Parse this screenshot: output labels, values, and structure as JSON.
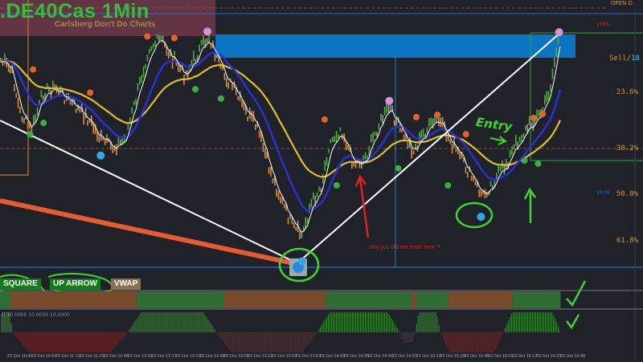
{
  "header": {
    "symbol_title": ".DE40Cas 1Min",
    "subtitle": "Carlsberg Don't Do Charts"
  },
  "right_labels": {
    "open": "OPEN D",
    "y38": "y38%",
    "sell": "Sell/",
    "sell_count": "18",
    "plow": "pLow"
  },
  "buttons": {
    "square": "SQUARE",
    "up_arrow": "UP ARROW",
    "vwap": "VWAP"
  },
  "annotations": {
    "entry": "Entry",
    "question": "why you did not enter here ?"
  },
  "oscillator_label": "() 10.0000 10.0000 10.0000",
  "colors": {
    "bull": "#4caf3a",
    "bear": "#e08a2a",
    "neutral": "#9a9a9a",
    "fast_ma": "#ffffff",
    "mid_ma": "#2a2fd0",
    "slow_ma": "#e0c020",
    "annotation_green": "#3fd52a",
    "annotation_red": "#e02020"
  },
  "chart_data": {
    "type": "candlestick",
    "title": ".DE40Cas 1Min",
    "y_axis": {
      "kind": "fibonacci retracement",
      "ticks": [
        "23.6%",
        "38.2%",
        "50.0%",
        "61.8%"
      ],
      "tick_values": [
        23.6,
        38.2,
        50.0,
        61.8
      ],
      "inverted": true
    },
    "x_axis": {
      "ticks": [
        "23 Oct 10:41",
        "23 Oct 10:57",
        "23 Oct 11:13",
        "23 Oct 11:29",
        "23 Oct 11:45",
        "23 Oct 12:01",
        "23 Oct 12:17",
        "23 Oct 12:33",
        "23 Oct 12:48",
        "23 Oct 13:05",
        "23 Oct 13:21",
        "23 Oct 13:37",
        "23 Oct 13:53",
        "23 Oct 14:09",
        "23 Oct 14:25",
        "23 Oct 14:41",
        "23 Oct 14:57",
        "23 Oct 15:13",
        "23 Oct 15:29",
        "23 Oct 15:45",
        "23 Oct 16:01",
        "23 Oct 16:17",
        "23 Oct 16:33",
        "23 Oct 16:49"
      ]
    },
    "price_path": [
      [
        "10:36",
        15.1
      ],
      [
        "10:44",
        18.2
      ],
      [
        "10:49",
        28.6
      ],
      [
        "10:57",
        33.7
      ],
      [
        "11:05",
        23.4
      ],
      [
        "11:13",
        22.4
      ],
      [
        "11:24",
        26.5
      ],
      [
        "11:35",
        30.6
      ],
      [
        "11:43",
        35.8
      ],
      [
        "11:51",
        37.9
      ],
      [
        "11:59",
        35.8
      ],
      [
        "12:07",
        24.4
      ],
      [
        "12:15",
        12.0
      ],
      [
        "12:23",
        9.9
      ],
      [
        "12:31",
        15.1
      ],
      [
        "12:39",
        19.3
      ],
      [
        "12:47",
        14.1
      ],
      [
        "12:55",
        8.9
      ],
      [
        "13:03",
        18.2
      ],
      [
        "13:11",
        22.4
      ],
      [
        "13:19",
        28.6
      ],
      [
        "13:27",
        32.7
      ],
      [
        "13:35",
        43.1
      ],
      [
        "13:43",
        51.3
      ],
      [
        "13:51",
        58.6
      ],
      [
        "13:57",
        60.7
      ],
      [
        "14:02",
        53.4
      ],
      [
        "14:10",
        47.2
      ],
      [
        "14:15",
        36.9
      ],
      [
        "14:23",
        32.7
      ],
      [
        "14:31",
        42.0
      ],
      [
        "14:39",
        41.0
      ],
      [
        "14:47",
        32.7
      ],
      [
        "14:55",
        27.5
      ],
      [
        "15:03",
        33.7
      ],
      [
        "15:11",
        38.9
      ],
      [
        "15:19",
        33.7
      ],
      [
        "15:27",
        30.6
      ],
      [
        "15:35",
        35.8
      ],
      [
        "15:43",
        41.0
      ],
      [
        "15:52",
        47.2
      ],
      [
        "15:57",
        50.3
      ],
      [
        "16:05",
        46.2
      ],
      [
        "16:13",
        42.0
      ],
      [
        "16:21",
        35.8
      ],
      [
        "16:29",
        31.7
      ],
      [
        "16:37",
        28.6
      ],
      [
        "16:42",
        22.4
      ],
      [
        "16:48",
        8.9
      ]
    ],
    "markers": [
      {
        "kind": "high",
        "time": "10:58",
        "value": 17.5
      },
      {
        "kind": "low",
        "time": "10:56",
        "value": 34.2
      },
      {
        "kind": "low",
        "time": "11:05",
        "value": 31.3
      },
      {
        "kind": "high",
        "time": "11:36",
        "value": 23.5
      },
      {
        "kind": "swing-low",
        "time": "11:43",
        "value": 39.7
      },
      {
        "kind": "high",
        "time": "12:14",
        "value": 9.0
      },
      {
        "kind": "high",
        "time": "12:32",
        "value": 9.4
      },
      {
        "kind": "low",
        "time": "12:46",
        "value": 22.6
      },
      {
        "kind": "swing-high",
        "time": "12:54",
        "value": 7.7
      },
      {
        "kind": "low",
        "time": "13:03",
        "value": 25.0
      },
      {
        "kind": "swing-low",
        "time": "13:57",
        "value": 67.0
      },
      {
        "kind": "high",
        "time": "14:12",
        "value": 30.4
      },
      {
        "kind": "low",
        "time": "14:20",
        "value": 47.4
      },
      {
        "kind": "swing-high",
        "time": "14:55",
        "value": 25.6
      },
      {
        "kind": "low",
        "time": "15:01",
        "value": 43.0
      },
      {
        "kind": "high",
        "time": "15:13",
        "value": 29.8
      },
      {
        "kind": "high",
        "time": "15:27",
        "value": 29.2
      },
      {
        "kind": "low",
        "time": "15:34",
        "value": 47.4
      },
      {
        "kind": "high",
        "time": "15:46",
        "value": 34.2
      },
      {
        "kind": "swing-low",
        "time": "15:56",
        "value": 55.5
      },
      {
        "kind": "low",
        "time": "16:25",
        "value": 41.0
      },
      {
        "kind": "high",
        "time": "16:31",
        "value": 30.0
      },
      {
        "kind": "low",
        "time": "16:34",
        "value": 41.8
      },
      {
        "kind": "high",
        "time": "16:37",
        "value": 29.0
      },
      {
        "kind": "swing-high",
        "time": "16:48",
        "value": 7.9
      }
    ],
    "trend_panel": [
      [
        "10:36",
        "10:43",
        "bull"
      ],
      [
        "10:43",
        "12:07",
        "bear"
      ],
      [
        "12:07",
        "13:05",
        "bull"
      ],
      [
        "13:05",
        "14:13",
        "bear"
      ],
      [
        "14:13",
        "15:10",
        "bull"
      ],
      [
        "15:10",
        "15:13",
        "bear"
      ],
      [
        "15:13",
        "15:34",
        "bull"
      ],
      [
        "15:34",
        "16:17",
        "bear"
      ],
      [
        "16:17",
        "16:49",
        "bull"
      ]
    ],
    "oscillator": {
      "range": [
        -10,
        10
      ],
      "segments": [
        [
          "10:36",
          "10:44",
          10
        ],
        [
          "10:44",
          "12:01",
          -10
        ],
        [
          "12:01",
          "13:00",
          10
        ],
        [
          "13:00",
          "14:07",
          -10
        ],
        [
          "14:07",
          "15:02",
          10
        ],
        [
          "15:02",
          "15:12",
          -5
        ],
        [
          "15:12",
          "15:29",
          10
        ],
        [
          "15:29",
          "16:11",
          -10
        ],
        [
          "16:11",
          "16:49",
          10
        ]
      ]
    }
  }
}
